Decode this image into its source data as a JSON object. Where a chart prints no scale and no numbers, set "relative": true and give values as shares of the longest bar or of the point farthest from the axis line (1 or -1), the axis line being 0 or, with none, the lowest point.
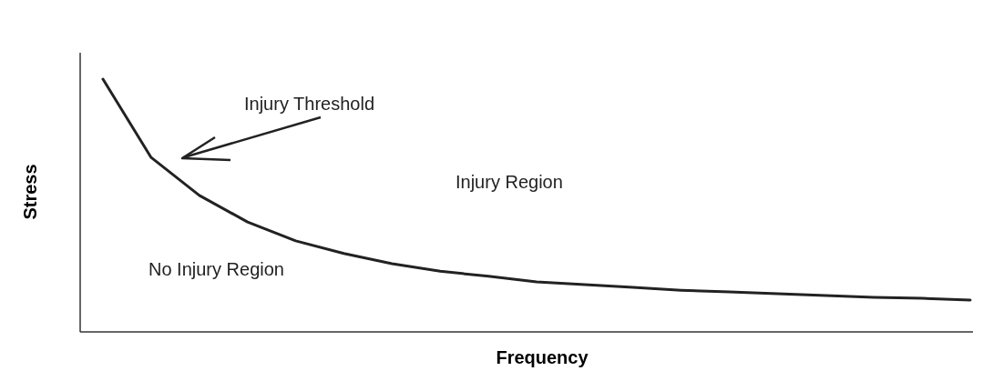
{
  "chart_data": {
    "type": "line",
    "relative": true,
    "xlabel": "Frequency",
    "ylabel": "Stress",
    "color": "#222222",
    "categories": [
      null,
      null,
      null,
      null,
      null,
      null,
      null,
      null,
      null,
      null,
      null,
      null,
      null,
      null,
      null,
      null,
      null,
      null,
      null
    ],
    "values": [
      1,
      0.69,
      0.54,
      0.435,
      0.36,
      0.31,
      0.27,
      0.24,
      0.22,
      0.198,
      0.187,
      0.176,
      0.165,
      0.158,
      0.151,
      0.144,
      0.137,
      0.133,
      0.126
    ],
    "annotations": [
      "Injury Threshold",
      "Injury Region",
      "No Injury Region"
    ]
  }
}
